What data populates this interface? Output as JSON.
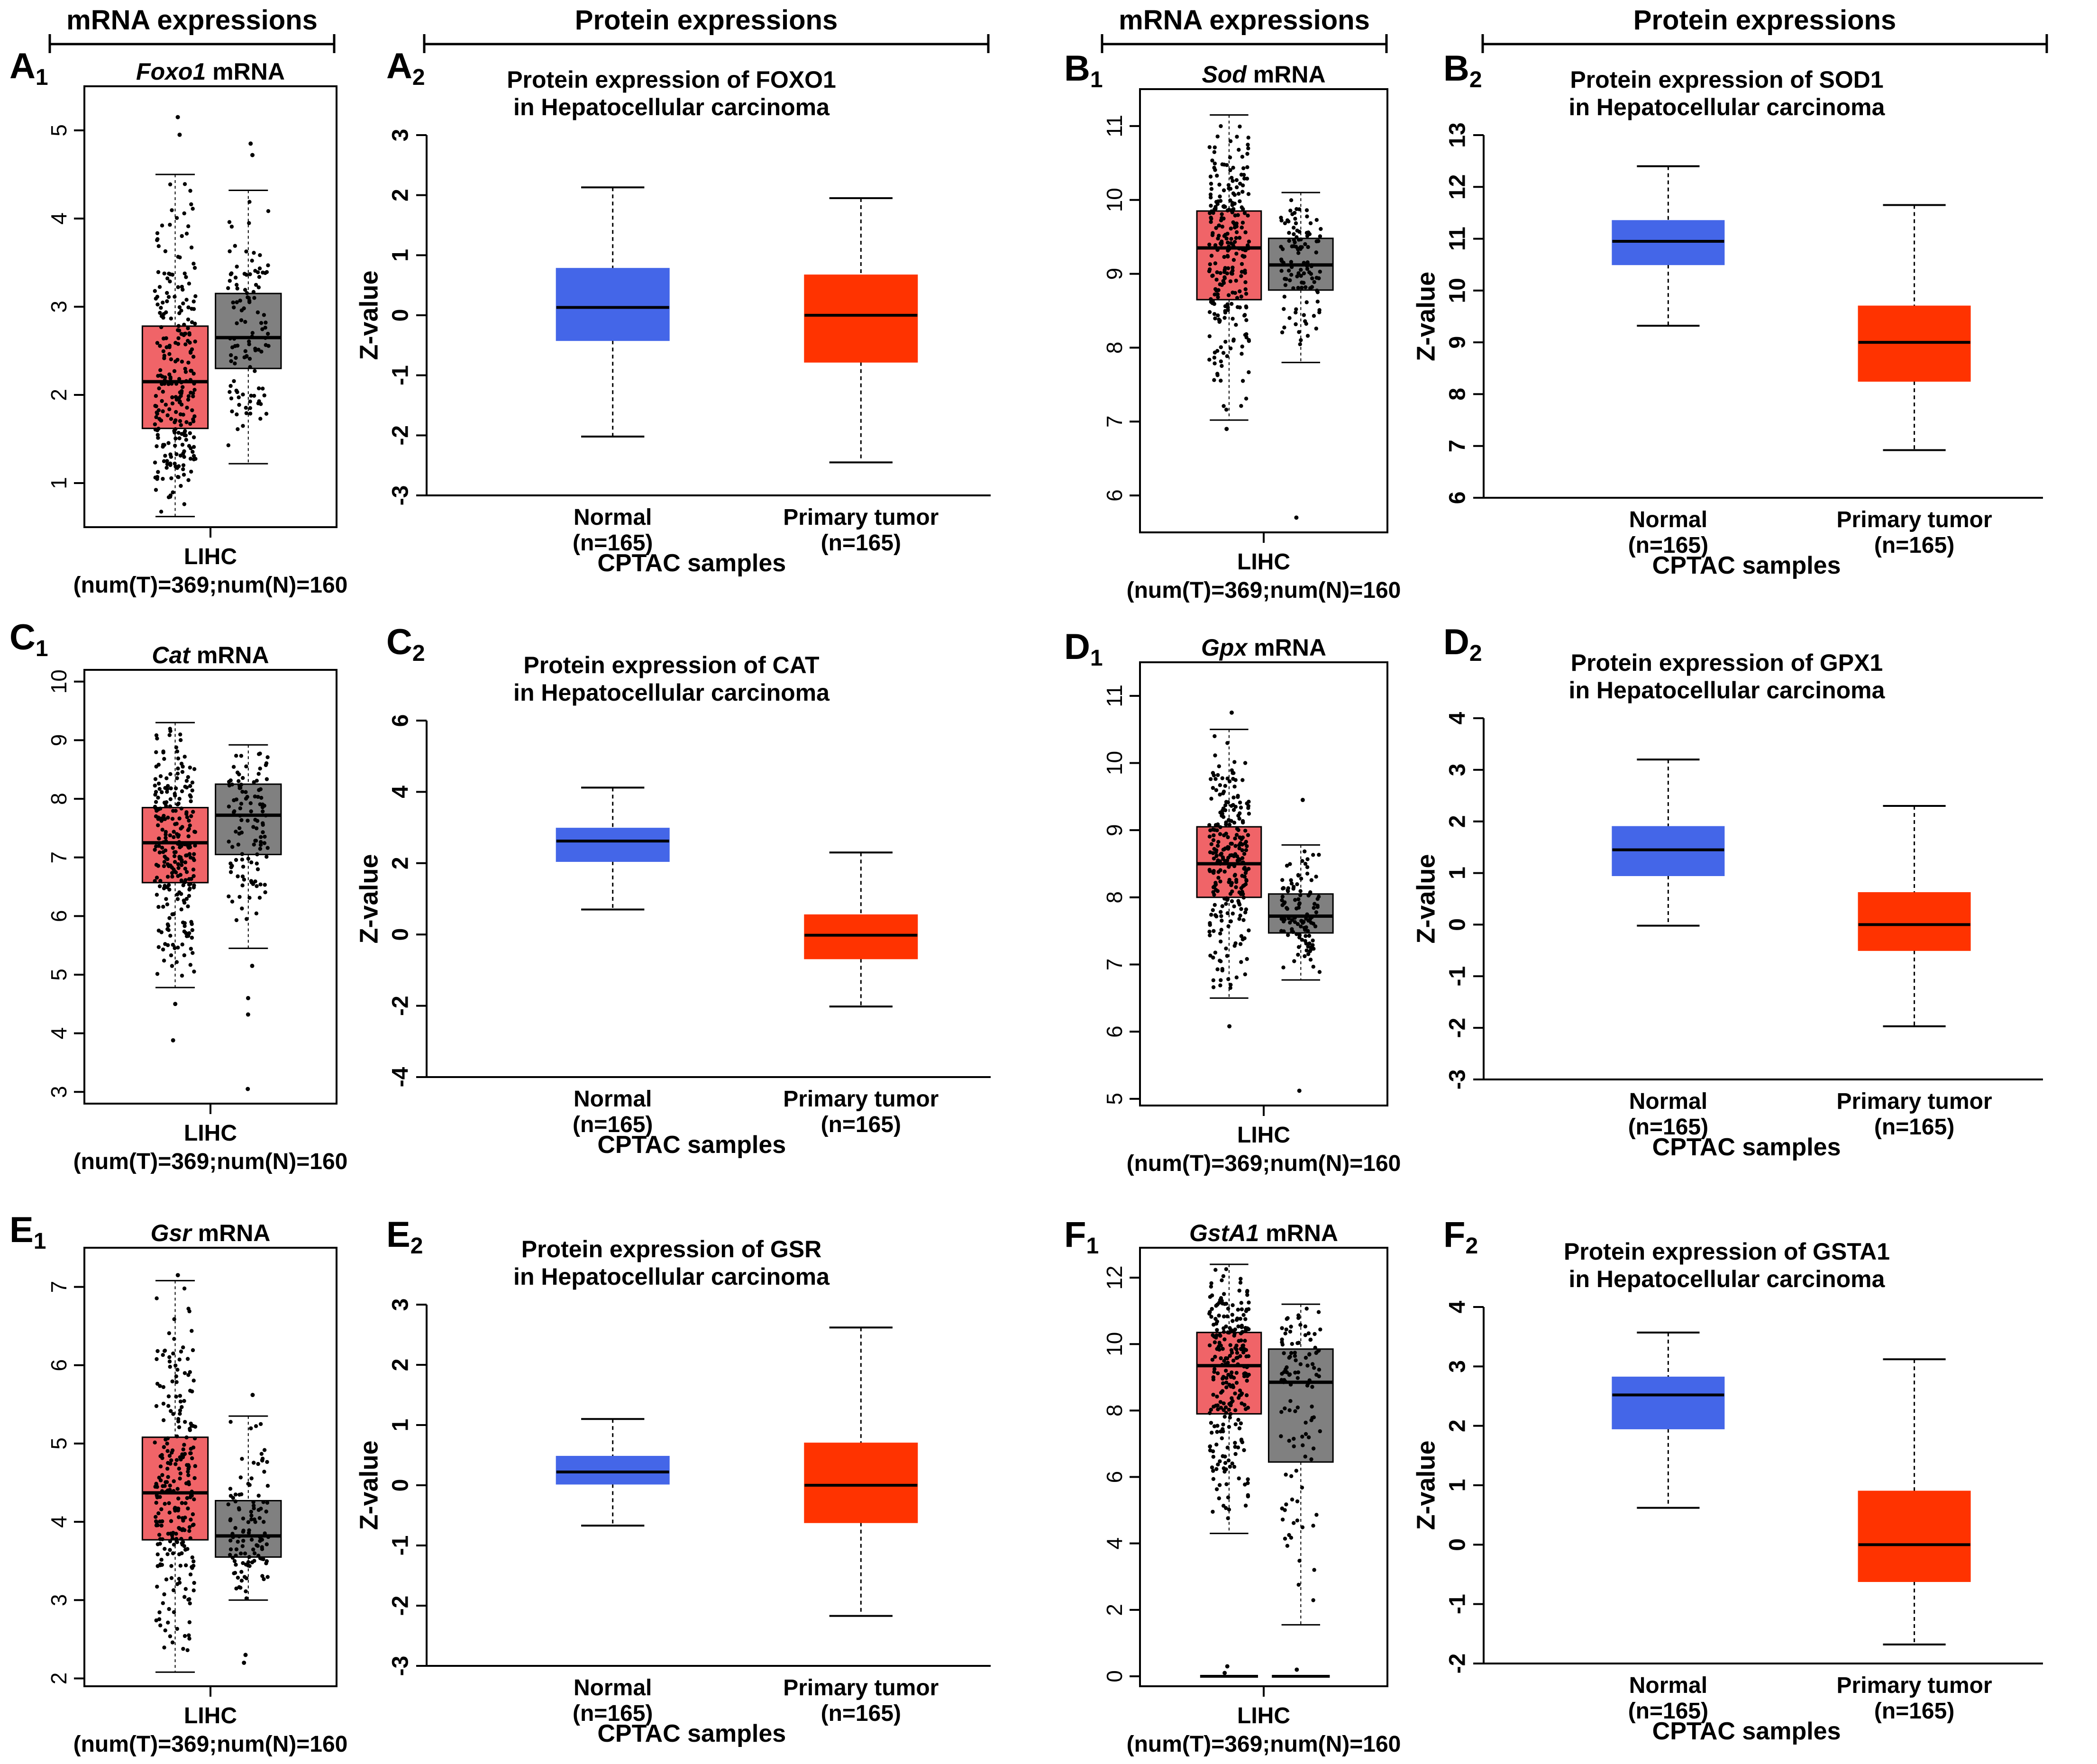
{
  "headers": {
    "mrna": "mRNA expressions",
    "protein": "Protein expressions"
  },
  "colors": {
    "tumor_mrna": "#f06468",
    "normal_mrna": "#808080",
    "normal_protein": "#4466e8",
    "tumor_protein": "#ff3300",
    "axis": "#000000"
  },
  "chart_data": [
    {
      "panel": "A1",
      "kind": "mrna",
      "type": "box",
      "gene": "Foxo1",
      "title_suffix": " mRNA",
      "xlabel_lines": [
        "LIHC",
        "(num(T)=369;num(N)=160"
      ],
      "ylim": [
        0.5,
        5.5
      ],
      "ticks": [
        1,
        2,
        3,
        4,
        5
      ],
      "series": [
        {
          "name": "Tumor",
          "color_key": "tumor_mrna",
          "min": 0.62,
          "q1": 1.62,
          "median": 2.15,
          "q3": 2.78,
          "max": 4.5,
          "count": 369
        },
        {
          "name": "Normal",
          "color_key": "normal_mrna",
          "min": 1.22,
          "q1": 2.3,
          "median": 2.65,
          "q3": 3.15,
          "max": 4.32,
          "count": 160
        }
      ],
      "outliers": [
        [
          0,
          5.15
        ],
        [
          0,
          4.95
        ],
        [
          1,
          4.85
        ],
        [
          1,
          4.72
        ]
      ]
    },
    {
      "panel": "A2",
      "kind": "protein",
      "type": "box",
      "title_lines": [
        "Protein expression of FOXO1",
        "in Hepatocellular carcinoma"
      ],
      "ylabel": "Z-value",
      "xlabel": "CPTAC samples",
      "ylim": [
        -3,
        3
      ],
      "ticks": [
        -3,
        -2,
        -1,
        0,
        1,
        2,
        3
      ],
      "series": [
        {
          "name_lines": [
            "Normal",
            "(n=165)"
          ],
          "color_key": "normal_protein",
          "min": -2.02,
          "q1": -0.42,
          "median": 0.13,
          "q3": 0.78,
          "max": 2.13
        },
        {
          "name_lines": [
            "Primary tumor",
            "(n=165)"
          ],
          "color_key": "tumor_protein",
          "min": -2.45,
          "q1": -0.78,
          "median": 0.0,
          "q3": 0.67,
          "max": 1.95
        }
      ]
    },
    {
      "panel": "B1",
      "kind": "mrna",
      "type": "box",
      "gene": "Sod",
      "title_suffix": " mRNA",
      "xlabel_lines": [
        "LIHC",
        "(num(T)=369;num(N)=160"
      ],
      "ylim": [
        5.5,
        11.5
      ],
      "ticks": [
        6,
        7,
        8,
        9,
        10,
        11
      ],
      "series": [
        {
          "name": "Tumor",
          "color_key": "tumor_mrna",
          "min": 7.02,
          "q1": 8.65,
          "median": 9.35,
          "q3": 9.85,
          "max": 11.15,
          "count": 369
        },
        {
          "name": "Normal",
          "color_key": "normal_mrna",
          "min": 7.8,
          "q1": 8.78,
          "median": 9.12,
          "q3": 9.48,
          "max": 10.1,
          "count": 160
        }
      ],
      "outliers": [
        [
          1,
          5.7
        ],
        [
          0,
          6.9
        ]
      ]
    },
    {
      "panel": "B2",
      "kind": "protein",
      "type": "box",
      "title_lines": [
        "Protein expression of SOD1",
        "in Hepatocellular carcinoma"
      ],
      "ylabel": "Z-value",
      "xlabel": "CPTAC samples",
      "ylim": [
        6,
        13
      ],
      "ticks": [
        6,
        7,
        8,
        9,
        10,
        11,
        12,
        13
      ],
      "series": [
        {
          "name_lines": [
            "Normal",
            "(n=165)"
          ],
          "color_key": "normal_protein",
          "min": 9.32,
          "q1": 10.5,
          "median": 10.95,
          "q3": 11.35,
          "max": 12.4
        },
        {
          "name_lines": [
            "Primary tumor",
            "(n=165)"
          ],
          "color_key": "tumor_protein",
          "min": 6.92,
          "q1": 8.25,
          "median": 9.0,
          "q3": 9.7,
          "max": 11.65
        }
      ]
    },
    {
      "panel": "C1",
      "kind": "mrna",
      "type": "box",
      "gene": "Cat",
      "title_suffix": " mRNA",
      "xlabel_lines": [
        "LIHC",
        "(num(T)=369;num(N)=160"
      ],
      "ylim": [
        2.8,
        10.2
      ],
      "ticks": [
        3,
        4,
        5,
        6,
        7,
        8,
        9,
        10
      ],
      "series": [
        {
          "name": "Tumor",
          "color_key": "tumor_mrna",
          "min": 4.78,
          "q1": 6.57,
          "median": 7.25,
          "q3": 7.85,
          "max": 9.3,
          "count": 369
        },
        {
          "name": "Normal",
          "color_key": "normal_mrna",
          "min": 5.45,
          "q1": 7.05,
          "median": 7.72,
          "q3": 8.25,
          "max": 8.92,
          "count": 160
        }
      ],
      "outliers": [
        [
          0,
          3.88
        ],
        [
          0,
          4.5
        ],
        [
          1,
          4.32
        ],
        [
          1,
          3.05
        ],
        [
          1,
          4.6
        ],
        [
          1,
          5.15
        ]
      ]
    },
    {
      "panel": "C2",
      "kind": "protein",
      "type": "box",
      "title_lines": [
        "Protein expression of CAT",
        "in Hepatocellular carcinoma"
      ],
      "ylabel": "Z-value",
      "xlabel": "CPTAC samples",
      "ylim": [
        -4,
        6
      ],
      "ticks": [
        -4,
        -2,
        0,
        2,
        4,
        6
      ],
      "series": [
        {
          "name_lines": [
            "Normal",
            "(n=165)"
          ],
          "color_key": "normal_protein",
          "min": 0.7,
          "q1": 2.05,
          "median": 2.62,
          "q3": 2.98,
          "max": 4.12
        },
        {
          "name_lines": [
            "Primary tumor",
            "(n=165)"
          ],
          "color_key": "tumor_protein",
          "min": -2.02,
          "q1": -0.68,
          "median": -0.02,
          "q3": 0.55,
          "max": 2.3
        }
      ]
    },
    {
      "panel": "D1",
      "kind": "mrna",
      "type": "box",
      "gene": "Gpx",
      "title_suffix": " mRNA",
      "xlabel_lines": [
        "LIHC",
        "(num(T)=369;num(N)=160"
      ],
      "ylim": [
        4.9,
        11.5
      ],
      "ticks": [
        5,
        6,
        7,
        8,
        9,
        10,
        11
      ],
      "series": [
        {
          "name": "Tumor",
          "color_key": "tumor_mrna",
          "min": 6.5,
          "q1": 8.0,
          "median": 8.5,
          "q3": 9.05,
          "max": 10.5,
          "count": 369
        },
        {
          "name": "Normal",
          "color_key": "normal_mrna",
          "min": 6.77,
          "q1": 7.47,
          "median": 7.72,
          "q3": 8.05,
          "max": 8.78,
          "count": 160
        }
      ],
      "outliers": [
        [
          0,
          6.08
        ],
        [
          0,
          10.75
        ],
        [
          1,
          5.12
        ],
        [
          1,
          9.45
        ]
      ]
    },
    {
      "panel": "D2",
      "kind": "protein",
      "type": "box",
      "title_lines": [
        "Protein expression of GPX1",
        "in Hepatocellular carcinoma"
      ],
      "ylabel": "Z-value",
      "xlabel": "CPTAC samples",
      "ylim": [
        -3,
        4
      ],
      "ticks": [
        -3,
        -2,
        -1,
        0,
        1,
        2,
        3,
        4
      ],
      "series": [
        {
          "name_lines": [
            "Normal",
            "(n=165)"
          ],
          "color_key": "normal_protein",
          "min": -0.02,
          "q1": 0.95,
          "median": 1.45,
          "q3": 1.9,
          "max": 3.2
        },
        {
          "name_lines": [
            "Primary tumor",
            "(n=165)"
          ],
          "color_key": "tumor_protein",
          "min": -1.97,
          "q1": -0.5,
          "median": 0.0,
          "q3": 0.62,
          "max": 2.3
        }
      ]
    },
    {
      "panel": "E1",
      "kind": "mrna",
      "type": "box",
      "gene": "Gsr",
      "title_suffix": " mRNA",
      "xlabel_lines": [
        "LIHC",
        "(num(T)=369;num(N)=160"
      ],
      "ylim": [
        1.9,
        7.5
      ],
      "ticks": [
        2,
        3,
        4,
        5,
        6,
        7
      ],
      "series": [
        {
          "name": "Tumor",
          "color_key": "tumor_mrna",
          "min": 2.08,
          "q1": 3.77,
          "median": 4.37,
          "q3": 5.08,
          "max": 7.08,
          "count": 369
        },
        {
          "name": "Normal",
          "color_key": "normal_mrna",
          "min": 3.0,
          "q1": 3.55,
          "median": 3.82,
          "q3": 4.27,
          "max": 5.35,
          "count": 160
        }
      ],
      "outliers": [
        [
          0,
          7.15
        ],
        [
          1,
          2.2
        ],
        [
          1,
          2.3
        ],
        [
          1,
          5.62
        ]
      ]
    },
    {
      "panel": "E2",
      "kind": "protein",
      "type": "box",
      "title_lines": [
        "Protein expression of GSR",
        "in Hepatocellular carcinoma"
      ],
      "ylabel": "Z-value",
      "xlabel": "CPTAC samples",
      "ylim": [
        -3,
        3
      ],
      "ticks": [
        -3,
        -2,
        -1,
        0,
        1,
        2,
        3
      ],
      "series": [
        {
          "name_lines": [
            "Normal",
            "(n=165)"
          ],
          "color_key": "normal_protein",
          "min": -0.67,
          "q1": 0.02,
          "median": 0.22,
          "q3": 0.48,
          "max": 1.1
        },
        {
          "name_lines": [
            "Primary tumor",
            "(n=165)"
          ],
          "color_key": "tumor_protein",
          "min": -2.17,
          "q1": -0.62,
          "median": 0.0,
          "q3": 0.7,
          "max": 2.62
        }
      ]
    },
    {
      "panel": "F1",
      "kind": "mrna",
      "type": "box",
      "gene": "GstA1",
      "title_suffix": " mRNA",
      "xlabel_lines": [
        "LIHC",
        "(num(T)=369;num(N)=160"
      ],
      "ylim": [
        -0.3,
        12.9
      ],
      "ticks": [
        0,
        2,
        4,
        6,
        8,
        10,
        12
      ],
      "series": [
        {
          "name": "Tumor",
          "color_key": "tumor_mrna",
          "min": 4.3,
          "q1": 7.9,
          "median": 9.35,
          "q3": 10.35,
          "max": 12.4,
          "count": 369,
          "floor": 0
        },
        {
          "name": "Normal",
          "color_key": "normal_mrna",
          "min": 1.55,
          "q1": 6.45,
          "median": 8.85,
          "q3": 9.85,
          "max": 11.2,
          "count": 160,
          "floor": 0
        }
      ],
      "outliers": [
        [
          0,
          0.1
        ],
        [
          0,
          0.3
        ],
        [
          1,
          0.2
        ]
      ]
    },
    {
      "panel": "F2",
      "kind": "protein",
      "type": "box",
      "title_lines": [
        "Protein expression of GSTA1",
        "in Hepatocellular carcinoma"
      ],
      "ylabel": "Z-value",
      "xlabel": "CPTAC samples",
      "ylim": [
        -2,
        4
      ],
      "ticks": [
        -2,
        -1,
        0,
        1,
        2,
        3,
        4
      ],
      "series": [
        {
          "name_lines": [
            "Normal",
            "(n=165)"
          ],
          "color_key": "normal_protein",
          "min": 0.62,
          "q1": 1.95,
          "median": 2.52,
          "q3": 2.82,
          "max": 3.57
        },
        {
          "name_lines": [
            "Primary tumor",
            "(n=165)"
          ],
          "color_key": "tumor_protein",
          "min": -1.68,
          "q1": -0.62,
          "median": 0.0,
          "q3": 0.9,
          "max": 3.12
        }
      ]
    }
  ]
}
